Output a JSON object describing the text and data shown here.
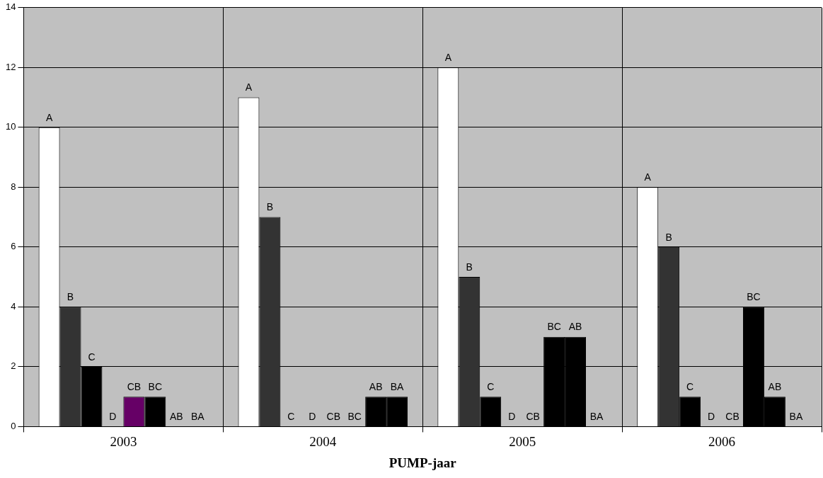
{
  "chart_data": {
    "type": "bar",
    "xlabel": "PUMP-jaar",
    "categories": [
      "2003",
      "2004",
      "2005",
      "2006"
    ],
    "series": [
      {
        "name": "A",
        "color": "#ffffff",
        "values": [
          10,
          11,
          12,
          8
        ]
      },
      {
        "name": "B",
        "color": "#333333",
        "values": [
          4,
          7,
          5,
          6
        ]
      },
      {
        "name": "C",
        "color": "#000000",
        "values": [
          2,
          0,
          1,
          1
        ]
      },
      {
        "name": "D",
        "color": "#000000",
        "values": [
          0,
          0,
          0,
          0
        ]
      },
      {
        "name": "CB",
        "color": "#660066",
        "values": [
          1,
          0,
          0,
          0
        ]
      },
      {
        "name": "BC",
        "color": "#000000",
        "values": [
          1,
          0,
          3,
          4
        ]
      },
      {
        "name": "AB",
        "color": "#000000",
        "values": [
          0,
          1,
          3,
          1
        ]
      },
      {
        "name": "BA",
        "color": "#000000",
        "values": [
          0,
          1,
          0,
          0
        ]
      }
    ],
    "ylim": [
      0,
      14
    ],
    "yticks": [
      0,
      2,
      4,
      6,
      8,
      10,
      12,
      14
    ],
    "grid": true,
    "legend": false
  }
}
